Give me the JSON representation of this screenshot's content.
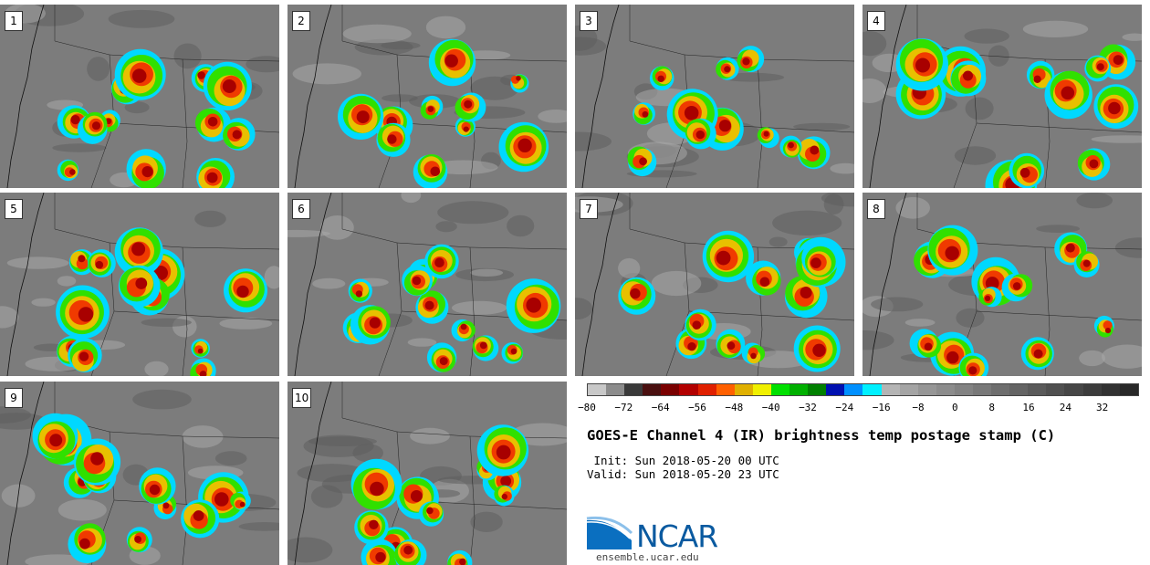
{
  "figure": {
    "title": "GOES-E Channel 4 (IR) brightness temp postage stamp (C)",
    "init": " Init: Sun 2018-05-20 00 UTC",
    "valid": "Valid: Sun 2018-05-20 23 UTC"
  },
  "panels": [
    {
      "label": "1"
    },
    {
      "label": "2"
    },
    {
      "label": "3"
    },
    {
      "label": "4"
    },
    {
      "label": "5"
    },
    {
      "label": "6"
    },
    {
      "label": "7"
    },
    {
      "label": "8"
    },
    {
      "label": "9"
    },
    {
      "label": "10"
    }
  ],
  "colorbar": {
    "colors": [
      "#c8c8c8",
      "#8c8c8c",
      "#3a3a3a",
      "#4a1010",
      "#7a0000",
      "#b20000",
      "#e02000",
      "#ff6000",
      "#e0b000",
      "#f0f000",
      "#00e000",
      "#00b000",
      "#008000",
      "#0010b0",
      "#0090ff",
      "#00f0ff",
      "#b4b4b4",
      "#a4a4a4",
      "#969696",
      "#8c8c8c",
      "#828282",
      "#787878",
      "#6e6e6e",
      "#646464",
      "#5a5a5a",
      "#505050",
      "#464646",
      "#3c3c3c",
      "#323232",
      "#282828"
    ],
    "min": -80,
    "max": 40,
    "ticks": [
      -80,
      -72,
      -64,
      -56,
      -48,
      -40,
      -32,
      -24,
      -16,
      -8,
      0,
      8,
      16,
      24,
      32
    ],
    "tick_labels": [
      "−80",
      "−72",
      "−64",
      "−56",
      "−48",
      "−40",
      "−32",
      "−24",
      "−16",
      "−8",
      "0",
      "8",
      "16",
      "24",
      "32"
    ]
  },
  "logo": {
    "text": "NCAR",
    "url_text": "ensemble.ucar.edu"
  }
}
